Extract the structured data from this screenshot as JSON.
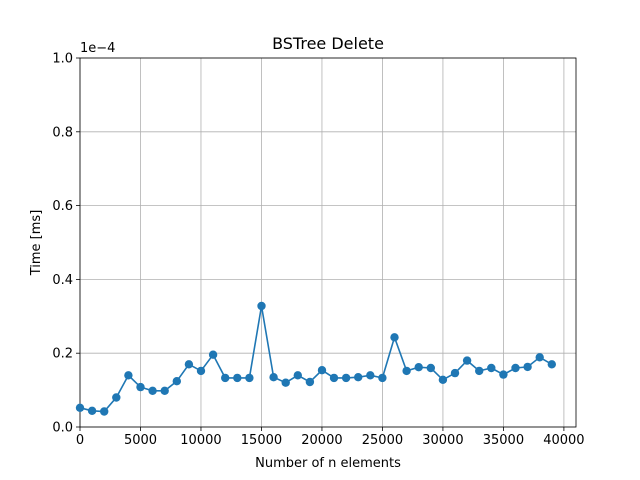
{
  "chart_data": {
    "type": "line",
    "title": "BSTree Delete",
    "xlabel": "Number of n elements",
    "ylabel": "Time [ms]",
    "y_offset_label": "1e−4",
    "y_scale_factor": 0.0001,
    "xlim": [
      0,
      41000
    ],
    "ylim": [
      0,
      1.0
    ],
    "xticks": [
      0,
      5000,
      10000,
      15000,
      20000,
      25000,
      30000,
      35000,
      40000
    ],
    "xtick_labels": [
      "0",
      "5000",
      "10000",
      "15000",
      "20000",
      "25000",
      "30000",
      "35000",
      "40000"
    ],
    "yticks": [
      0,
      0.2,
      0.4,
      0.6,
      0.8,
      1.0
    ],
    "ytick_labels": [
      "0.0",
      "0.2",
      "0.4",
      "0.6",
      "0.8",
      "1.0"
    ],
    "grid": true,
    "series": [
      {
        "color": "#1f77b4",
        "marker": "circle",
        "x": [
          0,
          1000,
          2000,
          3000,
          4000,
          5000,
          6000,
          7000,
          8000,
          9000,
          10000,
          11000,
          12000,
          13000,
          14000,
          15000,
          16000,
          17000,
          18000,
          19000,
          20000,
          21000,
          22000,
          23000,
          24000,
          25000,
          26000,
          27000,
          28000,
          29000,
          30000,
          31000,
          32000,
          33000,
          34000,
          35000,
          36000,
          37000,
          38000,
          39000
        ],
        "y": [
          0.052,
          0.044,
          0.042,
          0.08,
          0.14,
          0.108,
          0.098,
          0.098,
          0.124,
          0.17,
          0.152,
          0.196,
          0.133,
          0.133,
          0.133,
          0.328,
          0.135,
          0.12,
          0.14,
          0.122,
          0.154,
          0.133,
          0.133,
          0.135,
          0.14,
          0.133,
          0.243,
          0.152,
          0.162,
          0.16,
          0.128,
          0.146,
          0.18,
          0.152,
          0.16,
          0.142,
          0.16,
          0.163,
          0.189,
          0.17
        ]
      }
    ]
  }
}
